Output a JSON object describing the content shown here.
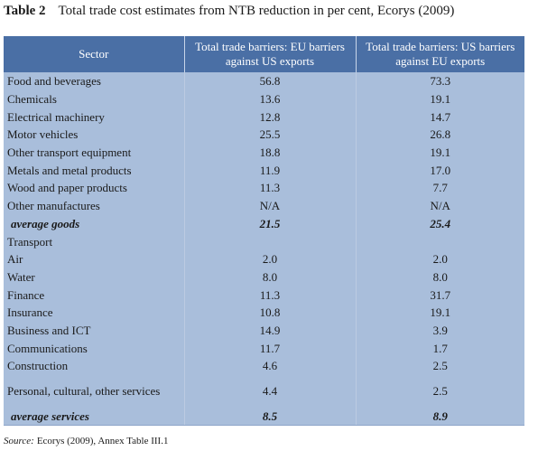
{
  "title": {
    "label": "Table 2",
    "text": "Total trade cost estimates from NTB reduction in per cent, Ecorys (2009)"
  },
  "table": {
    "header": [
      "Sector",
      "Total trade barriers: EU barriers against US exports",
      "Total trade barriers: US barriers against EU exports"
    ],
    "rows": [
      [
        "Food and beverages",
        "56.8",
        "73.3"
      ],
      [
        "Chemicals",
        "13.6",
        "19.1"
      ],
      [
        "Electrical machinery",
        "12.8",
        "14.7"
      ],
      [
        "Motor vehicles",
        "25.5",
        "26.8"
      ],
      [
        "Other transport equipment",
        "18.8",
        "19.1"
      ],
      [
        "Metals and metal products",
        "11.9",
        "17.0"
      ],
      [
        "Wood and paper products",
        "11.3",
        "7.7"
      ],
      [
        "Other manufactures",
        "N/A",
        "N/A"
      ],
      [
        "average goods",
        "21.5",
        "25.4"
      ],
      [
        "Transport"
      ],
      [
        "Air",
        "2.0",
        "2.0"
      ],
      [
        "Water",
        "8.0",
        "8.0"
      ],
      [
        "Finance",
        "11.3",
        "31.7"
      ],
      [
        "Insurance",
        "10.8",
        "19.1"
      ],
      [
        "Business and ICT",
        "14.9",
        "3.9"
      ],
      [
        "Communications",
        "11.7",
        "1.7"
      ],
      [
        "Construction",
        "4.6",
        "2.5"
      ],
      [
        "Personal, cultural, other services",
        "4.4",
        "2.5"
      ],
      [
        "average services",
        "8.5",
        "8.9"
      ]
    ]
  },
  "source": {
    "label": "Source:",
    "text": "Ecorys (2009), Annex Table III.1"
  }
}
